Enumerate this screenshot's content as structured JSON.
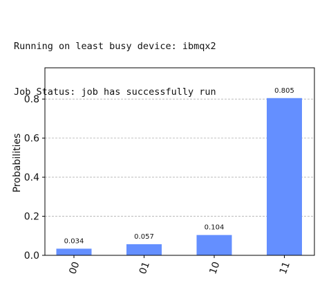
{
  "console": {
    "lines": [
      "Running on least busy device: ibmqx2",
      "Job Status: job has successfully run"
    ]
  },
  "chart_data": {
    "type": "bar",
    "categories": [
      "00",
      "01",
      "10",
      "11"
    ],
    "values": [
      0.034,
      0.057,
      0.104,
      0.805
    ],
    "value_labels": [
      "0.034",
      "0.057",
      "0.104",
      "0.805"
    ],
    "ylabel": "Probabilities",
    "xlabel": "",
    "ylim": [
      0,
      0.96
    ],
    "yticks": [
      0.0,
      0.2,
      0.4,
      0.6,
      0.8
    ],
    "ytick_labels": [
      "0.0",
      "0.2",
      "0.4",
      "0.6",
      "0.8"
    ],
    "grid": "horizontal-dashed",
    "bar_color": "#648fff",
    "xtick_rotation": -70
  }
}
